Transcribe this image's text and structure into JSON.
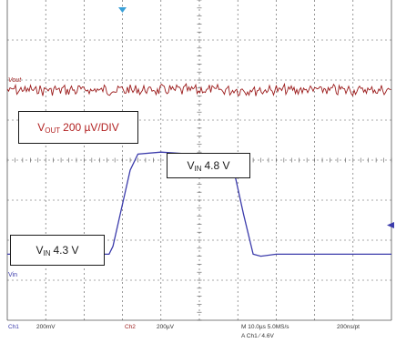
{
  "chart_data": {
    "type": "line",
    "grid": true,
    "x_unit": "µs",
    "x_div": 10.0,
    "x_range": [
      0,
      100
    ],
    "series": [
      {
        "name": "Ch2",
        "description_label": "VOUT 200 µV/DIV",
        "color": "#9b1b1b",
        "kind": "noise",
        "level_div": 5.75,
        "noise_amplitude_div": 0.12
      },
      {
        "name": "Ch1",
        "color": "#3b3bab",
        "kind": "pulse",
        "x": [
          0,
          26.5,
          27.5,
          32.0,
          34.0,
          40,
          48,
          55,
          57.5,
          58.5,
          61.5,
          64.0,
          66,
          70,
          80,
          100
        ],
        "y": [
          4.3,
          4.3,
          4.34,
          4.72,
          4.8,
          4.81,
          4.8,
          4.8,
          4.8,
          4.76,
          4.5,
          4.3,
          4.29,
          4.3,
          4.3,
          4.3
        ]
      }
    ]
  },
  "trace_labels": {
    "vout": "Vout",
    "vin": "Vin"
  },
  "annotations": {
    "vout_box": {
      "main": "V",
      "sub": "OUT",
      "rest": "200 µV/DIV"
    },
    "vin_high": {
      "main": "V",
      "sub": "IN",
      "rest": "4.8 V"
    },
    "vin_low": {
      "main": "V",
      "sub": "IN",
      "rest": "4.3 V"
    }
  },
  "status_bar": {
    "ch1_label": "Ch1",
    "ch1_scale": "200mV",
    "ch2_label": "Ch2",
    "ch2_scale": "200µV",
    "timebase": "M 10.0µs 5.0MS/s",
    "record": "200ns/pt",
    "trigger": "A  Ch1  ∕  4.6V"
  },
  "colors": {
    "grid": "#555555",
    "ch1_marker": "#3b3bab",
    "ch2_marker": "#9b1b1b",
    "annotation_text": "#b22222"
  }
}
